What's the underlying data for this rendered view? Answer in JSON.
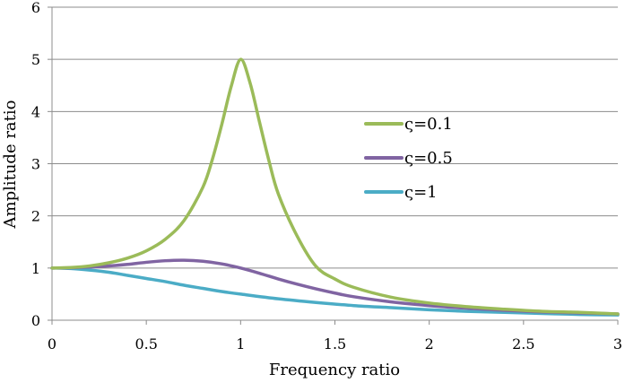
{
  "chart_data": {
    "type": "line",
    "title": "",
    "xlabel": "Frequency ratio",
    "ylabel": "Amplitude ratio",
    "xlim": [
      0,
      3
    ],
    "ylim": [
      0,
      6
    ],
    "xticks": [
      0,
      0.5,
      1,
      1.5,
      2,
      2.5,
      3
    ],
    "xtick_labels": [
      "0",
      "0.5",
      "1",
      "1.5",
      "2",
      "2.5",
      "3"
    ],
    "yticks": [
      0,
      1,
      2,
      3,
      4,
      5,
      6
    ],
    "ytick_labels": [
      "0",
      "1",
      "2",
      "3",
      "4",
      "5",
      "6"
    ],
    "grid": "horizontal",
    "legend_position": "right-middle",
    "series": [
      {
        "name": "ς=0.1",
        "color": "#9bbb59",
        "x": [
          0,
          0.1,
          0.2,
          0.3,
          0.4,
          0.5,
          0.6,
          0.7,
          0.8,
          0.85,
          0.9,
          0.95,
          1.0,
          1.05,
          1.1,
          1.15,
          1.2,
          1.3,
          1.4,
          1.5,
          1.6,
          1.8,
          2.0,
          2.2,
          2.4,
          2.6,
          2.8,
          3.0
        ],
        "y": [
          1.0,
          1.01,
          1.04,
          1.1,
          1.19,
          1.33,
          1.55,
          1.91,
          2.55,
          3.08,
          3.75,
          4.48,
          5.0,
          4.55,
          3.8,
          3.06,
          2.42,
          1.61,
          1.03,
          0.79,
          0.63,
          0.44,
          0.33,
          0.26,
          0.21,
          0.17,
          0.15,
          0.12
        ]
      },
      {
        "name": "ς=0.5",
        "color": "#8064a2",
        "x": [
          0,
          0.1,
          0.2,
          0.3,
          0.4,
          0.5,
          0.6,
          0.7,
          0.8,
          0.9,
          1.0,
          1.1,
          1.2,
          1.3,
          1.4,
          1.5,
          1.6,
          1.8,
          2.0,
          2.2,
          2.4,
          2.6,
          2.8,
          3.0
        ],
        "y": [
          1.0,
          1.005,
          1.02,
          1.04,
          1.07,
          1.11,
          1.14,
          1.15,
          1.13,
          1.08,
          1.0,
          0.9,
          0.79,
          0.69,
          0.6,
          0.52,
          0.45,
          0.35,
          0.28,
          0.23,
          0.19,
          0.16,
          0.14,
          0.12
        ]
      },
      {
        "name": "ς=1",
        "color": "#4bacc6",
        "x": [
          0,
          0.1,
          0.2,
          0.3,
          0.4,
          0.5,
          0.6,
          0.7,
          0.8,
          0.9,
          1.0,
          1.2,
          1.4,
          1.6,
          1.8,
          2.0,
          2.2,
          2.4,
          2.6,
          2.8,
          3.0
        ],
        "y": [
          1.0,
          0.99,
          0.96,
          0.92,
          0.86,
          0.8,
          0.74,
          0.67,
          0.61,
          0.55,
          0.5,
          0.41,
          0.34,
          0.28,
          0.24,
          0.2,
          0.17,
          0.15,
          0.13,
          0.11,
          0.1
        ]
      }
    ]
  }
}
